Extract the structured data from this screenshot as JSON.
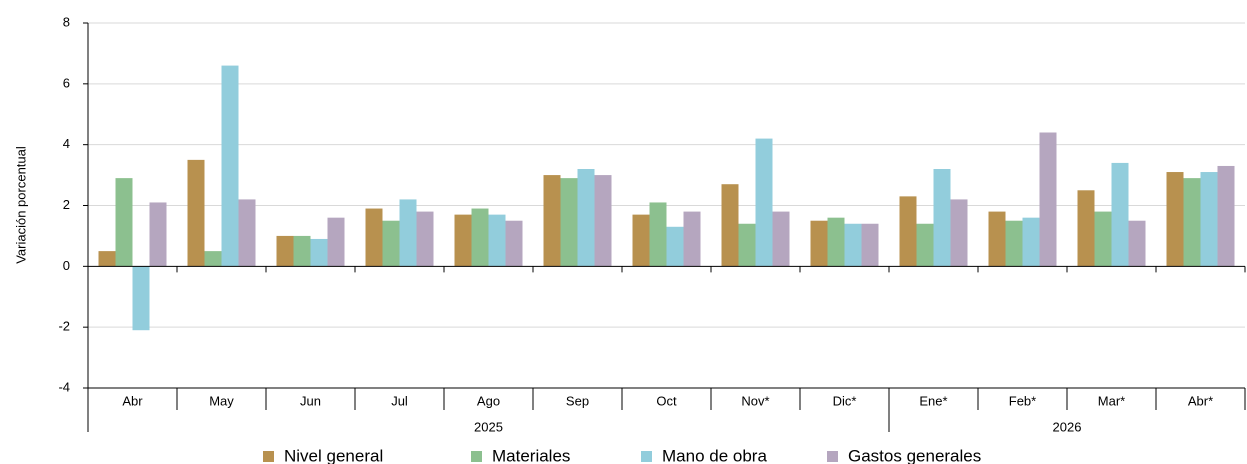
{
  "chart_data": {
    "type": "bar",
    "y_label": "Variación porcentual",
    "categories": [
      "Abr",
      "May",
      "Jun",
      "Jul",
      "Ago",
      "Sep",
      "Oct",
      "Nov*",
      "Dic*",
      "Ene*",
      "Feb*",
      "Mar*",
      "Abr*"
    ],
    "groups": [
      {
        "label": "2025",
        "count": 9
      },
      {
        "label": "2026",
        "count": 4
      }
    ],
    "series": [
      {
        "name": "Nivel general",
        "color": "#b8914f",
        "values": [
          0.5,
          3.5,
          1.0,
          1.9,
          1.7,
          3.0,
          1.7,
          2.7,
          1.5,
          2.3,
          1.8,
          2.5,
          3.1
        ]
      },
      {
        "name": "Materiales",
        "color": "#8cc08f",
        "values": [
          2.9,
          0.5,
          1.0,
          1.5,
          1.9,
          2.9,
          2.1,
          1.4,
          1.6,
          1.4,
          1.5,
          1.8,
          2.9
        ]
      },
      {
        "name": "Mano de obra",
        "color": "#92cddc",
        "values": [
          -2.1,
          6.6,
          0.9,
          2.2,
          1.7,
          3.2,
          1.3,
          4.2,
          1.4,
          3.2,
          1.6,
          3.4,
          3.1
        ]
      },
      {
        "name": "Gastos generales",
        "color": "#b5a6bf",
        "values": [
          2.1,
          2.2,
          1.6,
          1.8,
          1.5,
          3.0,
          1.8,
          1.8,
          1.4,
          2.2,
          4.4,
          1.5,
          3.3
        ]
      }
    ],
    "ylim": [
      -4,
      8
    ],
    "yticks": [
      -4,
      -2,
      0,
      2,
      4,
      6,
      8
    ],
    "grid": true,
    "legend": "bottom"
  }
}
